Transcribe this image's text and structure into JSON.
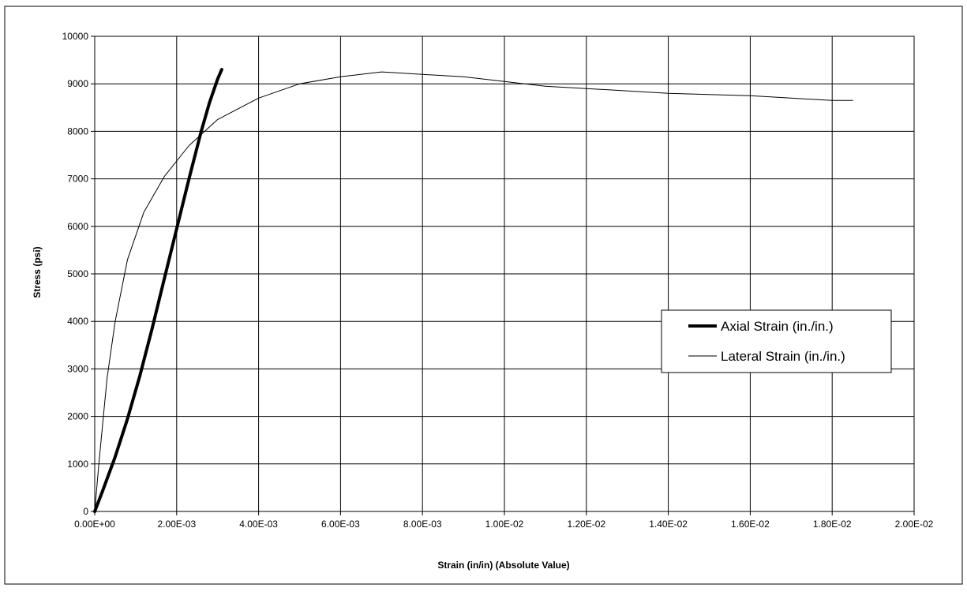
{
  "chart_data": {
    "type": "line",
    "title": "",
    "xlabel": "Strain (in/in) (Absolute Value)",
    "ylabel": "Stress (psi)",
    "xlim": [
      0,
      0.02
    ],
    "ylim": [
      0,
      10000
    ],
    "x_ticks": [
      0,
      0.002,
      0.004,
      0.006,
      0.008,
      0.01,
      0.012,
      0.014,
      0.016,
      0.018,
      0.02
    ],
    "x_tick_labels": [
      "0.00E+00",
      "2.00E-03",
      "4.00E-03",
      "6.00E-03",
      "8.00E-03",
      "1.00E-02",
      "1.20E-02",
      "1.40E-02",
      "1.60E-02",
      "1.80E-02",
      "2.00E-02"
    ],
    "y_ticks": [
      0,
      1000,
      2000,
      3000,
      4000,
      5000,
      6000,
      7000,
      8000,
      9000,
      10000
    ],
    "y_tick_labels": [
      "0",
      "1000",
      "2000",
      "3000",
      "4000",
      "5000",
      "6000",
      "7000",
      "8000",
      "9000",
      "10000"
    ],
    "grid": true,
    "legend_position": "right",
    "series": [
      {
        "name": "Axial Strain (in./in.)",
        "color": "#000000",
        "line_weight": "heavy",
        "x": [
          0,
          0.0002,
          0.0005,
          0.0008,
          0.0011,
          0.0014,
          0.0017,
          0.002,
          0.0023,
          0.0026,
          0.0028,
          0.003,
          0.0031
        ],
        "y": [
          0,
          450,
          1150,
          1950,
          2850,
          3850,
          4900,
          5950,
          7000,
          8000,
          8600,
          9100,
          9300
        ]
      },
      {
        "name": "Lateral Strain (in./in.)",
        "color": "#000000",
        "line_weight": "thin",
        "x": [
          0,
          0.0001,
          0.0002,
          0.0003,
          0.0005,
          0.0008,
          0.0012,
          0.0017,
          0.0023,
          0.003,
          0.004,
          0.005,
          0.006,
          0.007,
          0.008,
          0.009,
          0.01,
          0.011,
          0.012,
          0.014,
          0.016,
          0.018,
          0.0185
        ],
        "y": [
          0,
          1000,
          1900,
          2800,
          4000,
          5300,
          6300,
          7050,
          7700,
          8250,
          8700,
          9000,
          9150,
          9250,
          9200,
          9150,
          9050,
          8950,
          8900,
          8800,
          8750,
          8650,
          8650
        ]
      }
    ]
  }
}
